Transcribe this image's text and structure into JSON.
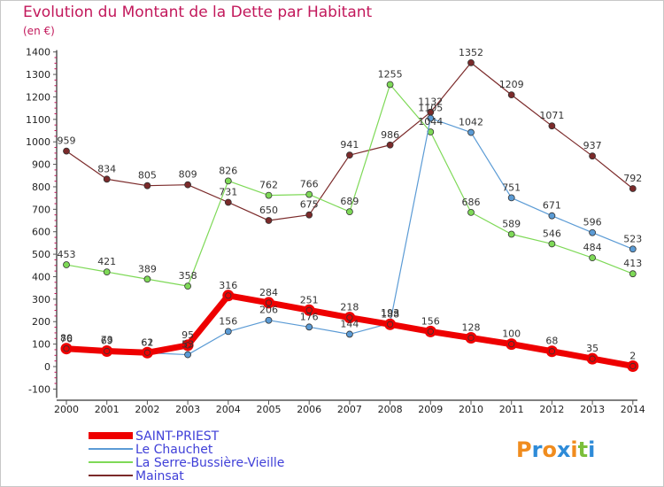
{
  "title": "Evolution du Montant de la Dette par Habitant",
  "unit_label": "(en €)",
  "brand": "Proxiti",
  "chart_data": {
    "type": "line",
    "x": [
      "2000",
      "2001",
      "2002",
      "2003",
      "2004",
      "2005",
      "2006",
      "2007",
      "2008",
      "2009",
      "2010",
      "2011",
      "2012",
      "2013",
      "2014"
    ],
    "ylim": [
      -100,
      1400
    ],
    "yticks": [
      -100,
      0,
      100,
      200,
      300,
      400,
      500,
      600,
      700,
      800,
      900,
      1000,
      1100,
      1200,
      1300,
      1400
    ],
    "grid": false,
    "legend_position": "bottom-left",
    "series": [
      {
        "name": "Mainsat",
        "color": "#7b2a2a",
        "width": 1.2,
        "r": 3.5,
        "values": [
          959,
          834,
          805,
          809,
          731,
          650,
          675,
          941,
          986,
          1132,
          1352,
          1209,
          1071,
          937,
          792
        ]
      },
      {
        "name": "La Serre-Bussière-Vieille",
        "color": "#7ed957",
        "width": 1.2,
        "r": 3.5,
        "values": [
          453,
          421,
          389,
          358,
          826,
          762,
          766,
          689,
          1255,
          1044,
          686,
          589,
          546,
          484,
          413
        ]
      },
      {
        "name": "Le Chauchet",
        "color": "#5b9bd5",
        "width": 1.2,
        "r": 3.5,
        "values": [
          76,
          73,
          61,
          53,
          156,
          206,
          176,
          144,
          193,
          1105,
          1042,
          751,
          671,
          596,
          523
        ]
      },
      {
        "name": "SAINT-PRIEST",
        "color": "#ee0000",
        "width": 7,
        "r": 6.5,
        "values": [
          80,
          69,
          62,
          95,
          316,
          284,
          251,
          218,
          188,
          156,
          128,
          100,
          68,
          35,
          2
        ]
      }
    ],
    "legend_order": [
      "SAINT-PRIEST",
      "Le Chauchet",
      "La Serre-Bussière-Vieille",
      "Mainsat"
    ]
  }
}
